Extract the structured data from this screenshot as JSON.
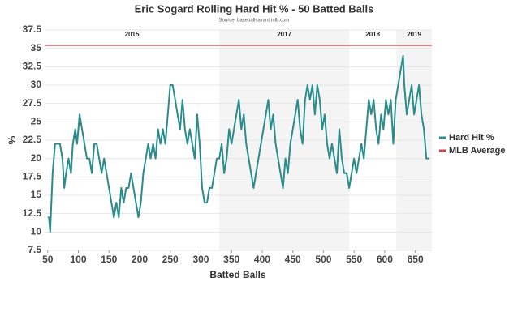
{
  "chart_data": {
    "type": "line",
    "title": "Eric Sogard Rolling Hard Hit % - 50 Batted Balls",
    "subtitle": "Source: baseballsavant.mlb.com",
    "x_label": "Batted Balls",
    "y_label": "%",
    "xlim": [
      45,
      677
    ],
    "ylim": [
      7.5,
      37.5
    ],
    "xticks": [
      50,
      100,
      150,
      200,
      250,
      300,
      350,
      400,
      450,
      500,
      550,
      600,
      650
    ],
    "yticks": [
      7.5,
      10,
      12.5,
      15,
      17.5,
      20,
      22.5,
      25,
      27.5,
      30,
      32.5,
      35,
      37.5
    ],
    "grid": true,
    "legend": "right",
    "seasons": [
      {
        "label": "2015",
        "start": 45,
        "end": 330,
        "shaded": false
      },
      {
        "label": "2017",
        "start": 330,
        "end": 542,
        "shaded": true
      },
      {
        "label": "2018",
        "start": 542,
        "end": 619,
        "shaded": false
      },
      {
        "label": "2019",
        "start": 619,
        "end": 677,
        "shaded": true
      }
    ],
    "x": [
      50,
      52,
      54,
      56,
      58,
      62,
      70,
      74,
      77,
      80,
      84,
      88,
      91,
      95,
      98,
      102,
      106,
      110,
      114,
      118,
      122,
      126,
      130,
      134,
      138,
      142,
      146,
      150,
      154,
      158,
      162,
      166,
      170,
      174,
      178,
      182,
      186,
      190,
      194,
      198,
      202,
      206,
      210,
      214,
      218,
      222,
      226,
      230,
      234,
      238,
      242,
      246,
      250,
      254,
      258,
      262,
      266,
      270,
      274,
      278,
      282,
      286,
      290,
      294,
      298,
      302,
      306,
      310,
      314,
      318,
      322,
      326,
      330,
      334,
      338,
      342,
      346,
      350,
      354,
      358,
      362,
      366,
      370,
      374,
      378,
      382,
      386,
      390,
      394,
      398,
      402,
      406,
      410,
      414,
      418,
      422,
      426,
      430,
      434,
      438,
      442,
      446,
      450,
      454,
      458,
      462,
      466,
      470,
      474,
      478,
      482,
      486,
      490,
      494,
      498,
      502,
      506,
      510,
      514,
      518,
      522,
      526,
      530,
      534,
      538,
      542,
      546,
      550,
      554,
      558,
      562,
      566,
      570,
      574,
      578,
      582,
      586,
      590,
      594,
      598,
      602,
      606,
      610,
      614,
      618,
      622,
      626,
      630,
      632,
      636,
      640,
      644,
      648,
      652,
      656,
      660,
      664,
      668,
      672
    ],
    "series": [
      {
        "name": "Hard Hit %",
        "color": "#2b8c8c",
        "values": [
          12,
          12,
          10,
          14,
          18,
          22,
          22,
          20,
          16,
          18,
          20,
          18,
          22,
          24,
          22,
          26,
          24,
          22,
          20,
          20,
          18,
          22,
          22,
          20,
          18,
          20,
          18,
          16,
          14,
          12,
          14,
          12,
          16,
          14,
          16,
          16,
          18,
          16,
          14,
          12,
          14,
          18,
          20,
          22,
          20,
          22,
          20,
          24,
          22,
          24,
          22,
          26,
          30,
          30,
          28,
          26,
          24,
          28,
          24,
          22,
          24,
          22,
          20,
          26,
          22,
          16,
          14,
          14,
          16,
          16,
          18,
          20,
          20,
          22,
          18,
          20,
          24,
          22,
          24,
          26,
          28,
          24,
          26,
          22,
          20,
          18,
          16,
          18,
          20,
          22,
          24,
          26,
          28,
          24,
          26,
          22,
          20,
          18,
          16,
          20,
          18,
          22,
          24,
          26,
          28,
          24,
          22,
          28,
          30,
          28,
          30,
          26,
          30,
          28,
          24,
          26,
          22,
          20,
          22,
          20,
          18,
          24,
          20,
          18,
          18,
          16,
          18,
          20,
          18,
          20,
          22,
          20,
          24,
          28,
          26,
          28,
          24,
          22,
          26,
          24,
          28,
          26,
          28,
          22,
          28,
          30,
          32,
          34,
          30,
          26,
          28,
          30,
          26,
          28,
          30,
          26,
          24,
          20,
          20
        ]
      },
      {
        "name": "MLB Average",
        "color": "#d43d3d",
        "value": 35.4
      }
    ]
  }
}
